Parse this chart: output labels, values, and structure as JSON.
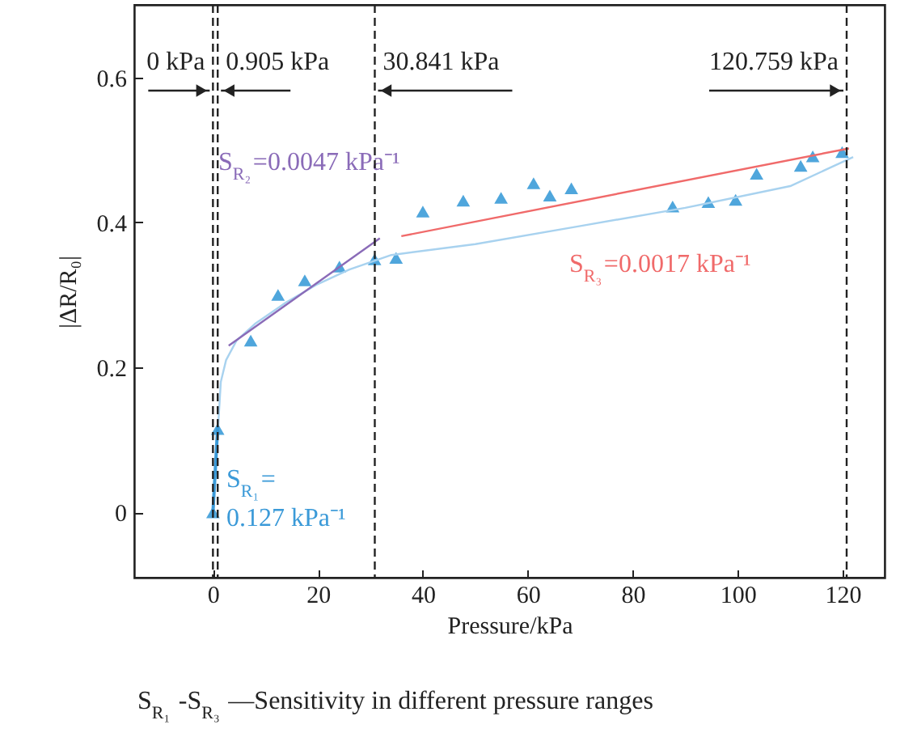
{
  "chart_data": {
    "type": "scatter",
    "xlabel": "Pressure/kPa",
    "ylabel": "|ΔR/R₀|",
    "xlim": [
      -15,
      128
    ],
    "ylim": [
      -0.09,
      0.7
    ],
    "xticks": [
      0,
      20,
      40,
      60,
      80,
      100,
      120
    ],
    "yticks": [
      0,
      0.2,
      0.4,
      0.6
    ],
    "series": [
      {
        "marker": "triangle",
        "color": "#4fa6dc",
        "x": [
          0,
          0.9,
          7.2,
          12.4,
          17.5,
          24.1,
          30.8,
          34.9,
          40.0,
          47.7,
          54.9,
          61.1,
          64.2,
          68.3,
          87.6,
          94.4,
          99.6,
          103.6,
          112,
          114.3,
          119.9
        ],
        "values": [
          0.0,
          0.115,
          0.237,
          0.3,
          0.32,
          0.339,
          0.349,
          0.351,
          0.415,
          0.43,
          0.434,
          0.454,
          0.437,
          0.447,
          0.422,
          0.428,
          0.431,
          0.467,
          0.478,
          0.491,
          0.497
        ]
      },
      {
        "type": "line",
        "color": "#a8d2ef",
        "x": [
          1,
          1.5,
          2.5,
          4.5,
          8,
          14,
          20,
          26,
          34,
          50,
          70,
          90,
          110,
          122
        ],
        "values": [
          0.12,
          0.18,
          0.21,
          0.237,
          0.26,
          0.29,
          0.315,
          0.335,
          0.355,
          0.37,
          0.395,
          0.42,
          0.45,
          0.49
        ]
      },
      {
        "type": "line",
        "name": "S$_{R₁}$=\n0.127 kPa⁻¹",
        "color": "#3b9ad8",
        "x": [
          0,
          0.9
        ],
        "values": [
          0.0,
          0.118
        ]
      },
      {
        "type": "line",
        "name": "S$_{R₂}$=0.0047 kPa⁻¹",
        "color": "#8a6bb8",
        "x": [
          3.0,
          31.8
        ],
        "values": [
          0.23,
          0.378
        ]
      },
      {
        "type": "line",
        "name": "S$_{R₃}$=0.0017 kPa⁻¹",
        "color": "#f06a6a",
        "x": [
          35.9,
          121.2
        ],
        "values": [
          0.381,
          0.502
        ]
      }
    ],
    "ref_lines": [
      {
        "axis": "x",
        "value": 0,
        "label": "0 kPa",
        "line_style": "dashed"
      },
      {
        "axis": "x",
        "value": 0.905,
        "label": "0.905 kPa",
        "line_style": "dashed"
      },
      {
        "axis": "x",
        "value": 30.841,
        "label": "30.841 kPa",
        "line_style": "dashed"
      },
      {
        "axis": "x",
        "value": 120.759,
        "label": "120.759 kPa",
        "line_style": "dashed"
      }
    ],
    "annotations": [
      "S$_{R₁}$ -S$_{R₃}$ —Sensitivity in different pressure ranges"
    ]
  }
}
